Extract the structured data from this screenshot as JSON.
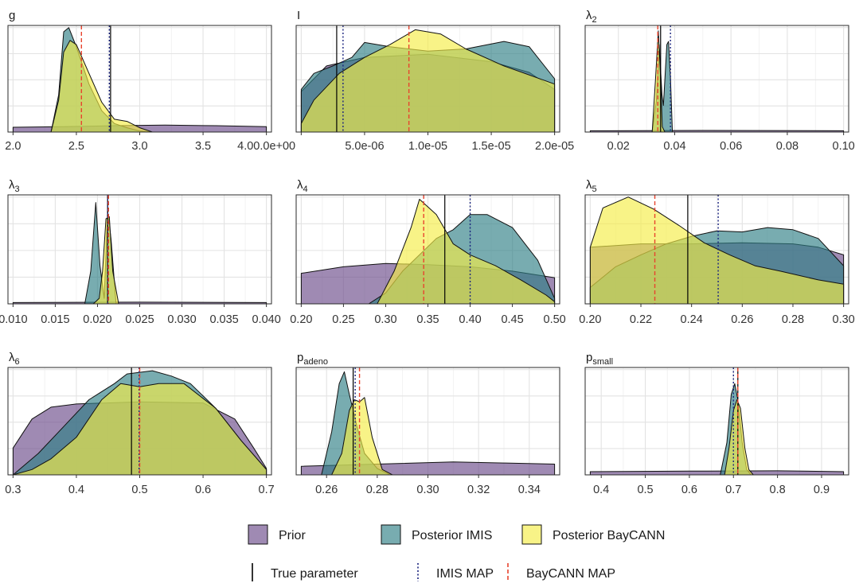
{
  "legend": {
    "fills": [
      {
        "label": "Prior",
        "color": "#6b4c8a"
      },
      {
        "label": "Posterior IMIS",
        "color": "#2f7f86"
      },
      {
        "label": "Posterior BayCANN",
        "color": "#f4ec46"
      }
    ],
    "lines": [
      {
        "label": "True parameter",
        "color": "#000000",
        "dash": "solid"
      },
      {
        "label": "IMIS MAP",
        "color": "#1a237e",
        "dash": "dotted"
      },
      {
        "label": "BayCANN MAP",
        "color": "#e8442e",
        "dash": "dashed"
      }
    ]
  },
  "chart_data": [
    {
      "type": "area",
      "title": "g",
      "title_sub": "",
      "xlim": [
        2.0,
        4.0
      ],
      "ticks": [
        2.0,
        2.5,
        3.0,
        3.5,
        4.0
      ],
      "tick_labels": [
        "2.0",
        "2.5",
        "3.0",
        "3.5",
        "4.00.0e+00"
      ],
      "vlines": {
        "true": 2.77,
        "imis": 2.76,
        "baycann": 2.54
      },
      "series": {
        "prior": [
          [
            2.0,
            0.045
          ],
          [
            2.4,
            0.05
          ],
          [
            2.8,
            0.06
          ],
          [
            3.2,
            0.065
          ],
          [
            3.6,
            0.06
          ],
          [
            4.0,
            0.05
          ]
        ],
        "imis": [
          [
            2.3,
            0.0
          ],
          [
            2.36,
            0.35
          ],
          [
            2.4,
            0.94
          ],
          [
            2.44,
            0.98
          ],
          [
            2.5,
            0.8
          ],
          [
            2.6,
            0.45
          ],
          [
            2.7,
            0.2
          ],
          [
            2.8,
            0.08
          ],
          [
            2.9,
            0.04
          ],
          [
            3.0,
            0.01
          ],
          [
            3.1,
            0.0
          ]
        ],
        "baycann": [
          [
            2.3,
            0.0
          ],
          [
            2.36,
            0.3
          ],
          [
            2.4,
            0.75
          ],
          [
            2.45,
            0.86
          ],
          [
            2.5,
            0.82
          ],
          [
            2.6,
            0.55
          ],
          [
            2.7,
            0.28
          ],
          [
            2.8,
            0.12
          ],
          [
            2.9,
            0.1
          ],
          [
            3.0,
            0.04
          ],
          [
            3.1,
            0.0
          ]
        ]
      }
    },
    {
      "type": "area",
      "title": "I",
      "title_sub": "",
      "xlim": [
        0.0,
        2e-05
      ],
      "ticks": [
        0.0,
        5e-06,
        1e-05,
        1.5e-05,
        2e-05
      ],
      "tick_labels": [
        "",
        "5.0e-06",
        "1.0e-05",
        "1.5e-05",
        "2.0e-05"
      ],
      "vlines": {
        "true": 2.8e-06,
        "imis": 3.3e-06,
        "baycann": 8.5e-06
      },
      "series": {
        "prior": [
          [
            0.0,
            0.38
          ],
          [
            2e-06,
            0.62
          ],
          [
            5e-06,
            0.7
          ],
          [
            1e-05,
            0.73
          ],
          [
            1.5e-05,
            0.66
          ],
          [
            1.8e-05,
            0.56
          ],
          [
            2e-05,
            0.4
          ]
        ],
        "imis": [
          [
            0.0,
            0.4
          ],
          [
            1e-06,
            0.55
          ],
          [
            2.5e-06,
            0.62
          ],
          [
            4e-06,
            0.7
          ],
          [
            5e-06,
            0.84
          ],
          [
            7e-06,
            0.8
          ],
          [
            1e-05,
            0.76
          ],
          [
            1.3e-05,
            0.78
          ],
          [
            1.6e-05,
            0.85
          ],
          [
            1.8e-05,
            0.8
          ],
          [
            2e-05,
            0.5
          ]
        ],
        "baycann": [
          [
            0.0,
            0.08
          ],
          [
            1e-06,
            0.3
          ],
          [
            3e-06,
            0.55
          ],
          [
            5e-06,
            0.7
          ],
          [
            7e-06,
            0.82
          ],
          [
            9e-06,
            0.96
          ],
          [
            1.1e-05,
            0.92
          ],
          [
            1.3e-05,
            0.78
          ],
          [
            1.6e-05,
            0.62
          ],
          [
            2e-05,
            0.45
          ]
        ]
      }
    },
    {
      "type": "area",
      "title": "λ",
      "title_sub": "2",
      "xlim": [
        0.01,
        0.1
      ],
      "ticks": [
        0.02,
        0.04,
        0.06,
        0.08,
        0.1
      ],
      "tick_labels": [
        "0.02",
        "0.04",
        "0.06",
        "0.08",
        "0.10"
      ],
      "vlines": {
        "true": 0.035,
        "imis": 0.0385,
        "baycann": 0.034
      },
      "series": {
        "prior": [
          [
            0.01,
            0.012
          ],
          [
            0.05,
            0.015
          ],
          [
            0.1,
            0.012
          ]
        ],
        "imis": [
          [
            0.032,
            0.0
          ],
          [
            0.0335,
            0.3
          ],
          [
            0.0345,
            0.82
          ],
          [
            0.0355,
            0.35
          ],
          [
            0.036,
            0.25
          ],
          [
            0.0372,
            0.82
          ],
          [
            0.0378,
            0.85
          ],
          [
            0.0385,
            0.5
          ],
          [
            0.0392,
            0.0
          ]
        ],
        "baycann": [
          [
            0.032,
            0.0
          ],
          [
            0.0332,
            0.5
          ],
          [
            0.0342,
            0.95
          ],
          [
            0.035,
            0.5
          ],
          [
            0.0356,
            0.05
          ],
          [
            0.0365,
            0.0
          ]
        ]
      }
    },
    {
      "type": "area",
      "title": "λ",
      "title_sub": "3",
      "xlim": [
        0.01,
        0.04
      ],
      "ticks": [
        0.01,
        0.015,
        0.02,
        0.025,
        0.03,
        0.035,
        0.04
      ],
      "tick_labels": [
        "0.010",
        "0.015",
        "0.020",
        "0.025",
        "0.030",
        "0.035",
        "0.040"
      ],
      "vlines": {
        "true": 0.0212,
        "imis": 0.0212,
        "baycann": 0.0213
      },
      "series": {
        "prior": [
          [
            0.01,
            0.012
          ],
          [
            0.025,
            0.015
          ],
          [
            0.04,
            0.012
          ]
        ],
        "imis": [
          [
            0.0185,
            0.0
          ],
          [
            0.0192,
            0.3
          ],
          [
            0.0198,
            0.93
          ],
          [
            0.0203,
            0.35
          ],
          [
            0.0208,
            0.05
          ],
          [
            0.0212,
            0.85
          ],
          [
            0.0216,
            0.6
          ],
          [
            0.0222,
            0.0
          ]
        ],
        "baycann": [
          [
            0.0195,
            0.0
          ],
          [
            0.0202,
            0.05
          ],
          [
            0.0206,
            0.3
          ],
          [
            0.021,
            0.78
          ],
          [
            0.0214,
            0.8
          ],
          [
            0.0218,
            0.3
          ],
          [
            0.0225,
            0.0
          ]
        ]
      }
    },
    {
      "type": "area",
      "title": "λ",
      "title_sub": "4",
      "xlim": [
        0.2,
        0.5
      ],
      "ticks": [
        0.2,
        0.25,
        0.3,
        0.35,
        0.4,
        0.45,
        0.5
      ],
      "tick_labels": [
        "0.20",
        "0.25",
        "0.30",
        "0.35",
        "0.40",
        "0.45",
        "0.50"
      ],
      "vlines": {
        "true": 0.37,
        "imis": 0.4,
        "baycann": 0.345
      },
      "series": {
        "prior": [
          [
            0.2,
            0.28
          ],
          [
            0.25,
            0.34
          ],
          [
            0.3,
            0.37
          ],
          [
            0.35,
            0.36
          ],
          [
            0.4,
            0.34
          ],
          [
            0.45,
            0.3
          ],
          [
            0.5,
            0.24
          ]
        ],
        "imis": [
          [
            0.28,
            0.0
          ],
          [
            0.3,
            0.1
          ],
          [
            0.32,
            0.3
          ],
          [
            0.34,
            0.45
          ],
          [
            0.36,
            0.6
          ],
          [
            0.38,
            0.68
          ],
          [
            0.4,
            0.82
          ],
          [
            0.42,
            0.82
          ],
          [
            0.45,
            0.7
          ],
          [
            0.48,
            0.4
          ],
          [
            0.5,
            0.05
          ]
        ],
        "baycann": [
          [
            0.29,
            0.0
          ],
          [
            0.31,
            0.3
          ],
          [
            0.33,
            0.7
          ],
          [
            0.34,
            0.96
          ],
          [
            0.36,
            0.82
          ],
          [
            0.38,
            0.55
          ],
          [
            0.4,
            0.45
          ],
          [
            0.43,
            0.35
          ],
          [
            0.46,
            0.22
          ],
          [
            0.49,
            0.08
          ],
          [
            0.5,
            0.02
          ]
        ]
      }
    },
    {
      "type": "area",
      "title": "λ",
      "title_sub": "5",
      "xlim": [
        0.2,
        0.3
      ],
      "ticks": [
        0.2,
        0.22,
        0.24,
        0.26,
        0.28,
        0.3
      ],
      "tick_labels": [
        "0.20",
        "0.22",
        "0.24",
        "0.26",
        "0.28",
        "0.30"
      ],
      "vlines": {
        "true": 0.2385,
        "imis": 0.2505,
        "baycann": 0.2255
      },
      "series": {
        "prior": [
          [
            0.2,
            0.52
          ],
          [
            0.22,
            0.55
          ],
          [
            0.24,
            0.55
          ],
          [
            0.26,
            0.56
          ],
          [
            0.28,
            0.55
          ],
          [
            0.29,
            0.52
          ],
          [
            0.3,
            0.45
          ]
        ],
        "imis": [
          [
            0.2,
            0.15
          ],
          [
            0.21,
            0.34
          ],
          [
            0.22,
            0.45
          ],
          [
            0.23,
            0.55
          ],
          [
            0.24,
            0.62
          ],
          [
            0.25,
            0.67
          ],
          [
            0.26,
            0.66
          ],
          [
            0.27,
            0.7
          ],
          [
            0.28,
            0.68
          ],
          [
            0.29,
            0.6
          ],
          [
            0.3,
            0.35
          ]
        ],
        "baycann": [
          [
            0.2,
            0.52
          ],
          [
            0.205,
            0.88
          ],
          [
            0.215,
            0.98
          ],
          [
            0.225,
            0.87
          ],
          [
            0.235,
            0.72
          ],
          [
            0.245,
            0.56
          ],
          [
            0.255,
            0.45
          ],
          [
            0.265,
            0.35
          ],
          [
            0.275,
            0.3
          ],
          [
            0.29,
            0.22
          ],
          [
            0.3,
            0.18
          ]
        ]
      }
    },
    {
      "type": "area",
      "title": "λ",
      "title_sub": "6",
      "xlim": [
        0.3,
        0.7
      ],
      "ticks": [
        0.3,
        0.4,
        0.5,
        0.6,
        0.7
      ],
      "tick_labels": [
        "0.3",
        "0.4",
        "0.5",
        "0.6",
        "0.7"
      ],
      "vlines": {
        "true": 0.487,
        "imis": 0.499,
        "baycann": 0.5
      },
      "series": {
        "prior": [
          [
            0.3,
            0.25
          ],
          [
            0.33,
            0.52
          ],
          [
            0.36,
            0.63
          ],
          [
            0.4,
            0.66
          ],
          [
            0.5,
            0.68
          ],
          [
            0.6,
            0.67
          ],
          [
            0.65,
            0.52
          ],
          [
            0.68,
            0.25
          ],
          [
            0.7,
            0.06
          ]
        ],
        "imis": [
          [
            0.3,
            0.0
          ],
          [
            0.34,
            0.2
          ],
          [
            0.38,
            0.45
          ],
          [
            0.42,
            0.7
          ],
          [
            0.46,
            0.85
          ],
          [
            0.48,
            0.94
          ],
          [
            0.52,
            0.97
          ],
          [
            0.55,
            0.92
          ],
          [
            0.58,
            0.85
          ],
          [
            0.62,
            0.62
          ],
          [
            0.66,
            0.32
          ],
          [
            0.7,
            0.05
          ]
        ],
        "baycann": [
          [
            0.3,
            0.0
          ],
          [
            0.33,
            0.05
          ],
          [
            0.36,
            0.15
          ],
          [
            0.4,
            0.35
          ],
          [
            0.44,
            0.7
          ],
          [
            0.47,
            0.85
          ],
          [
            0.5,
            0.82
          ],
          [
            0.53,
            0.85
          ],
          [
            0.57,
            0.85
          ],
          [
            0.62,
            0.62
          ],
          [
            0.66,
            0.32
          ],
          [
            0.7,
            0.05
          ]
        ]
      }
    },
    {
      "type": "area",
      "title": "p",
      "title_sub": "adeno",
      "xlim": [
        0.25,
        0.35
      ],
      "ticks": [
        0.26,
        0.28,
        0.3,
        0.32,
        0.34
      ],
      "tick_labels": [
        "0.26",
        "0.28",
        "0.30",
        "0.32",
        "0.34"
      ],
      "vlines": {
        "true": 0.2705,
        "imis": 0.2713,
        "baycann": 0.273
      },
      "series": {
        "prior": [
          [
            0.25,
            0.08
          ],
          [
            0.28,
            0.1
          ],
          [
            0.31,
            0.12
          ],
          [
            0.33,
            0.11
          ],
          [
            0.35,
            0.1
          ]
        ],
        "imis": [
          [
            0.258,
            0.0
          ],
          [
            0.262,
            0.4
          ],
          [
            0.265,
            0.85
          ],
          [
            0.267,
            0.96
          ],
          [
            0.269,
            0.75
          ],
          [
            0.272,
            0.45
          ],
          [
            0.275,
            0.2
          ],
          [
            0.28,
            0.06
          ],
          [
            0.285,
            0.0
          ]
        ],
        "baycann": [
          [
            0.262,
            0.0
          ],
          [
            0.266,
            0.2
          ],
          [
            0.269,
            0.6
          ],
          [
            0.271,
            0.7
          ],
          [
            0.273,
            0.68
          ],
          [
            0.275,
            0.72
          ],
          [
            0.278,
            0.35
          ],
          [
            0.282,
            0.05
          ],
          [
            0.286,
            0.0
          ]
        ]
      }
    },
    {
      "type": "area",
      "title": "p",
      "title_sub": "small",
      "xlim": [
        0.375,
        0.95
      ],
      "ticks": [
        0.4,
        0.5,
        0.6,
        0.7,
        0.8,
        0.9
      ],
      "tick_labels": [
        "0.4",
        "0.5",
        "0.6",
        "0.7",
        "0.8",
        "0.9"
      ],
      "vlines": {
        "true": 0.71,
        "imis": 0.7,
        "baycann": 0.71
      },
      "series": {
        "prior": [
          [
            0.375,
            0.03
          ],
          [
            0.6,
            0.035
          ],
          [
            0.8,
            0.038
          ],
          [
            0.95,
            0.03
          ]
        ],
        "imis": [
          [
            0.67,
            0.0
          ],
          [
            0.685,
            0.3
          ],
          [
            0.695,
            0.75
          ],
          [
            0.703,
            0.85
          ],
          [
            0.71,
            0.7
          ],
          [
            0.72,
            0.3
          ],
          [
            0.73,
            0.05
          ],
          [
            0.74,
            0.0
          ]
        ],
        "baycann": [
          [
            0.68,
            0.0
          ],
          [
            0.69,
            0.25
          ],
          [
            0.7,
            0.6
          ],
          [
            0.708,
            0.7
          ],
          [
            0.716,
            0.62
          ],
          [
            0.726,
            0.25
          ],
          [
            0.735,
            0.05
          ],
          [
            0.745,
            0.0
          ]
        ]
      }
    }
  ]
}
